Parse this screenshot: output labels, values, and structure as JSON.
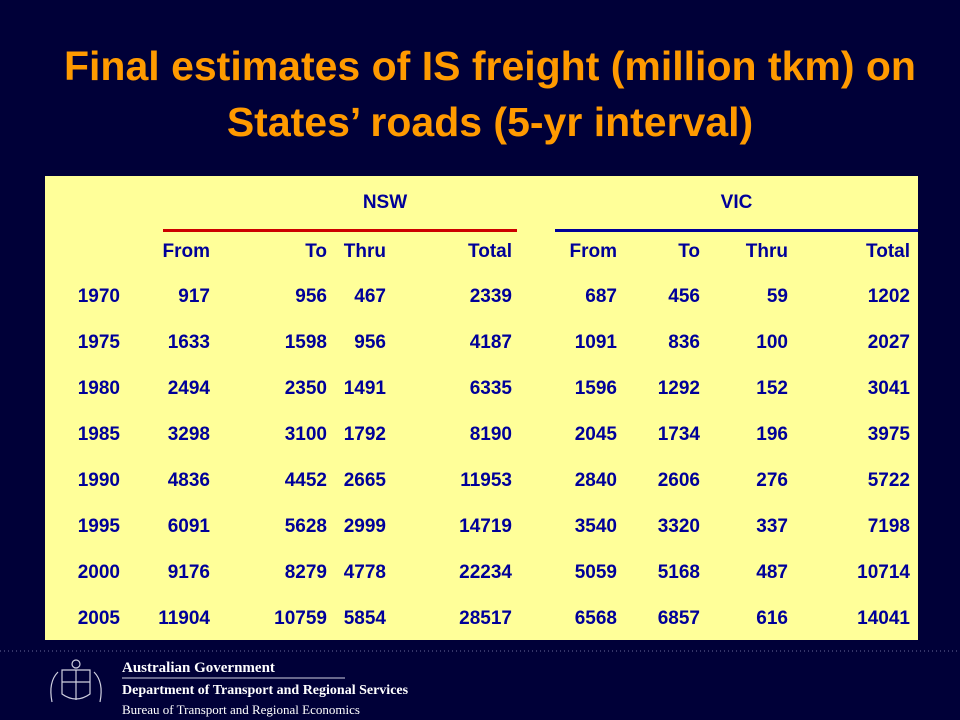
{
  "title": "Final estimates of IS freight (million tkm) on States’ roads (5-yr interval)",
  "table": {
    "groups": [
      "NSW",
      "VIC"
    ],
    "columns": [
      "From",
      "To",
      "Thru",
      "Total",
      "From",
      "To",
      "Thru",
      "Total"
    ],
    "rows": [
      [
        1970,
        917,
        956,
        467,
        2339,
        687,
        456,
        59,
        1202
      ],
      [
        1975,
        1633,
        1598,
        956,
        4187,
        1091,
        836,
        100,
        2027
      ],
      [
        1980,
        2494,
        2350,
        1491,
        6335,
        1596,
        1292,
        152,
        3041
      ],
      [
        1985,
        3298,
        3100,
        1792,
        8190,
        2045,
        1734,
        196,
        3975
      ],
      [
        1990,
        4836,
        4452,
        2665,
        11953,
        2840,
        2606,
        276,
        5722
      ],
      [
        1995,
        6091,
        5628,
        2999,
        14719,
        3540,
        3320,
        337,
        7198
      ],
      [
        2000,
        9176,
        8279,
        4778,
        22234,
        5059,
        5168,
        487,
        10714
      ],
      [
        2005,
        11904,
        10759,
        5854,
        28517,
        6568,
        6857,
        616,
        14041
      ]
    ]
  },
  "footer": {
    "line1": "Australian Government",
    "line2": "Department of Transport and Regional Services",
    "line3": "Bureau of Transport and Regional Economics"
  }
}
